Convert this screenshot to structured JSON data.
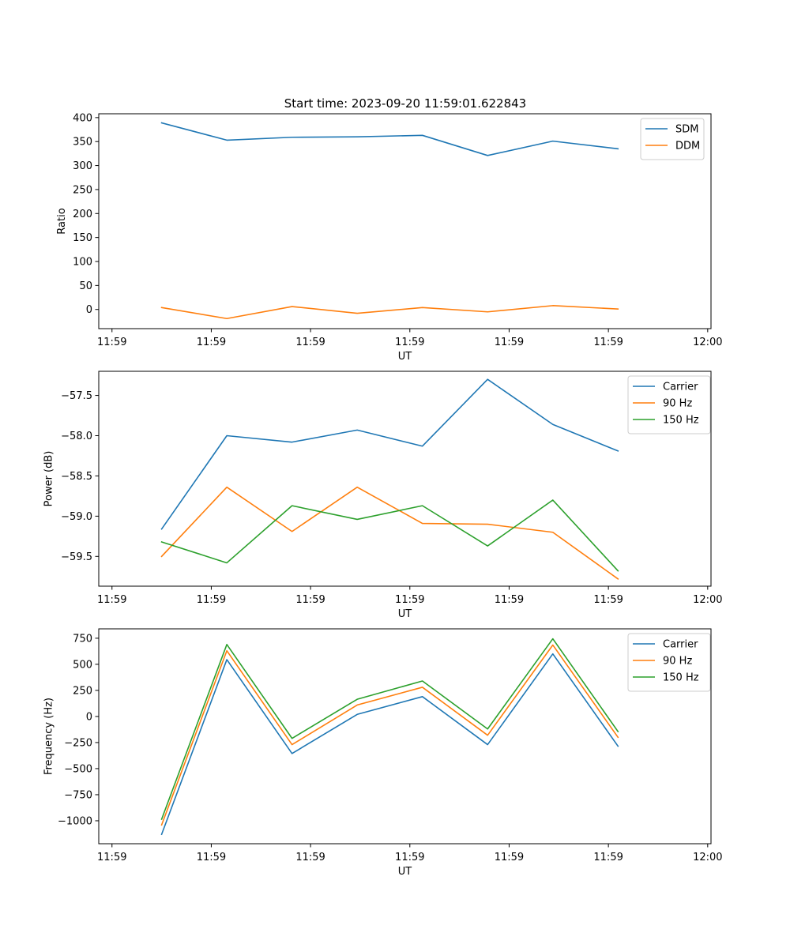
{
  "figure_title": "Start time: 2023-09-20 11:59:01.622843",
  "chart_data": [
    {
      "type": "line",
      "title": "Start time: 2023-09-20 11:59:01.622843",
      "xlabel": "UT",
      "ylabel": "Ratio",
      "x_ticks": [
        0,
        3,
        6,
        9,
        12,
        15,
        18
      ],
      "x_tick_labels": [
        "11:59",
        "11:59",
        "11:59",
        "11:59",
        "11:59",
        "11:59",
        "12:00"
      ],
      "xlim": [
        -0.4,
        18.1
      ],
      "ylim": [
        -40,
        408
      ],
      "y_ticks": [
        0,
        50,
        100,
        150,
        200,
        250,
        300,
        350,
        400
      ],
      "y_tick_labels": [
        "0",
        "50",
        "100",
        "150",
        "200",
        "250",
        "300",
        "350",
        "400"
      ],
      "x": [
        1.5,
        3.47,
        5.44,
        7.41,
        9.38,
        11.35,
        13.32,
        15.29
      ],
      "series": [
        {
          "name": "SDM",
          "color": "#1f77b4",
          "values": [
            389,
            353,
            359,
            360,
            363,
            321,
            351,
            335
          ]
        },
        {
          "name": "DDM",
          "color": "#ff7f0e",
          "values": [
            4,
            -19,
            6,
            -8,
            4,
            -5,
            8,
            1
          ]
        }
      ],
      "legend": "top-right"
    },
    {
      "type": "line",
      "title": "",
      "xlabel": "UT",
      "ylabel": "Power (dB)",
      "x_ticks": [
        0,
        3,
        6,
        9,
        12,
        15,
        18
      ],
      "x_tick_labels": [
        "11:59",
        "11:59",
        "11:59",
        "11:59",
        "11:59",
        "11:59",
        "12:00"
      ],
      "xlim": [
        -0.4,
        18.1
      ],
      "ylim": [
        -59.87,
        -57.2
      ],
      "y_ticks": [
        -57.5,
        -58.0,
        -58.5,
        -59.0,
        -59.5
      ],
      "y_tick_labels": [
        "−57.5",
        "−58.0",
        "−58.5",
        "−59.0",
        "−59.5"
      ],
      "x": [
        1.5,
        3.47,
        5.44,
        7.41,
        9.38,
        11.35,
        13.32,
        15.29
      ],
      "series": [
        {
          "name": "Carrier",
          "color": "#1f77b4",
          "values": [
            -59.16,
            -58.0,
            -58.08,
            -57.93,
            -58.13,
            -57.3,
            -57.86,
            -58.19
          ]
        },
        {
          "name": "90 Hz",
          "color": "#ff7f0e",
          "values": [
            -59.5,
            -58.64,
            -59.19,
            -58.64,
            -59.09,
            -59.1,
            -59.2,
            -59.78
          ]
        },
        {
          "name": "150 Hz",
          "color": "#2ca02c",
          "values": [
            -59.32,
            -59.58,
            -58.87,
            -59.04,
            -58.87,
            -59.37,
            -58.8,
            -59.68
          ]
        }
      ],
      "legend": "top-right"
    },
    {
      "type": "line",
      "title": "",
      "xlabel": "UT",
      "ylabel": "Frequency (Hz)",
      "x_ticks": [
        0,
        3,
        6,
        9,
        12,
        15,
        18
      ],
      "x_tick_labels": [
        "11:59",
        "11:59",
        "11:59",
        "11:59",
        "11:59",
        "11:59",
        "12:00"
      ],
      "xlim": [
        -0.4,
        18.1
      ],
      "ylim": [
        -1220,
        840
      ],
      "y_ticks": [
        750,
        500,
        250,
        0,
        -250,
        -500,
        -750,
        -1000
      ],
      "y_tick_labels": [
        "750",
        "500",
        "250",
        "0",
        "−250",
        "−500",
        "−750",
        "−1000"
      ],
      "x": [
        1.5,
        3.47,
        5.44,
        7.41,
        9.38,
        11.35,
        13.32,
        15.29
      ],
      "series": [
        {
          "name": "Carrier",
          "color": "#1f77b4",
          "values": [
            -1130,
            545,
            -355,
            20,
            190,
            -270,
            600,
            -285
          ]
        },
        {
          "name": "90 Hz",
          "color": "#ff7f0e",
          "values": [
            -1040,
            630,
            -270,
            110,
            280,
            -180,
            685,
            -200
          ]
        },
        {
          "name": "150 Hz",
          "color": "#2ca02c",
          "values": [
            -985,
            690,
            -210,
            165,
            340,
            -120,
            745,
            -145
          ]
        }
      ],
      "legend": "top-right"
    }
  ]
}
